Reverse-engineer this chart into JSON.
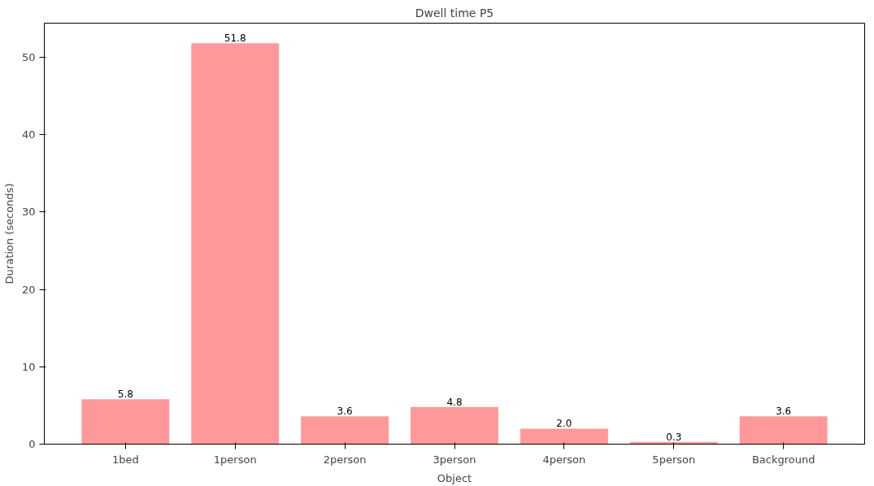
{
  "chart_data": {
    "type": "bar",
    "title": "Dwell time P5",
    "xlabel": "Object",
    "ylabel": "Duration (seconds)",
    "categories": [
      "1bed",
      "1person",
      "2person",
      "3person",
      "4person",
      "5person",
      "Background"
    ],
    "values": [
      5.8,
      51.8,
      3.6,
      4.8,
      2.0,
      0.3,
      3.6
    ],
    "color": "#ff9999",
    "ylim": [
      0,
      54.4
    ],
    "yticks": [
      0,
      10,
      20,
      30,
      40,
      50
    ],
    "grid": false,
    "value_labels": [
      "5.8",
      "51.8",
      "3.6",
      "4.8",
      "2.0",
      "0.3",
      "3.6"
    ]
  }
}
